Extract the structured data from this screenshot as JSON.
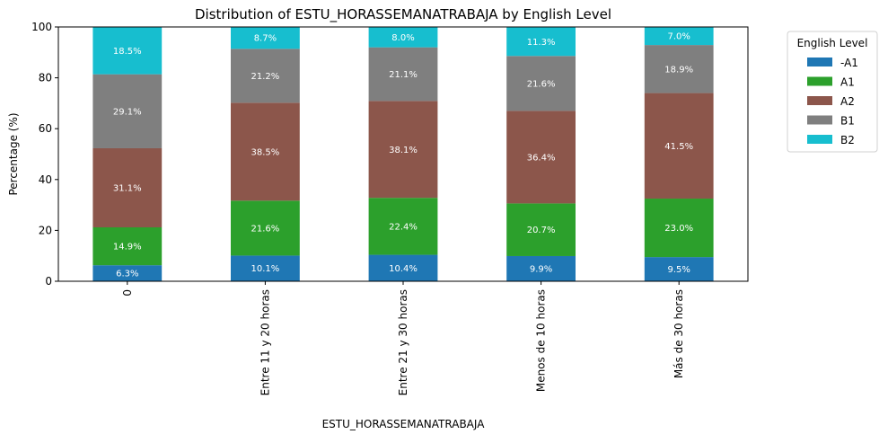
{
  "chart_data": {
    "type": "bar",
    "stacked": true,
    "title": "Distribution of ESTU_HORASSEMANATRABAJA by English Level",
    "xlabel": "ESTU_HORASSEMANATRABAJA",
    "ylabel": "Percentage (%)",
    "ylim": [
      0,
      100
    ],
    "yticks": [
      0,
      20,
      40,
      60,
      80,
      100
    ],
    "categories": [
      "0",
      "Entre 11 y 20 horas",
      "Entre 21 y 30 horas",
      "Menos de 10 horas",
      "Más de 30 horas"
    ],
    "legend_title": "English Level",
    "legend_position": "outside-top-right",
    "grid": false,
    "series": [
      {
        "name": "-A1",
        "color": "#1f77b4",
        "values": [
          6.3,
          10.1,
          10.4,
          9.9,
          9.5
        ],
        "labels": [
          "6.3%",
          "10.1%",
          "10.4%",
          "9.9%",
          "9.5%"
        ]
      },
      {
        "name": "A1",
        "color": "#2ca02c",
        "values": [
          14.9,
          21.6,
          22.4,
          20.7,
          23.0
        ],
        "labels": [
          "14.9%",
          "21.6%",
          "22.4%",
          "20.7%",
          "23.0%"
        ]
      },
      {
        "name": "A2",
        "color": "#8c564b",
        "values": [
          31.1,
          38.5,
          38.1,
          36.4,
          41.5
        ],
        "labels": [
          "31.1%",
          "38.5%",
          "38.1%",
          "36.4%",
          "41.5%"
        ]
      },
      {
        "name": "B1",
        "color": "#7f7f7f",
        "values": [
          29.1,
          21.2,
          21.1,
          21.6,
          18.9
        ],
        "labels": [
          "29.1%",
          "21.2%",
          "21.1%",
          "21.6%",
          "18.9%"
        ]
      },
      {
        "name": "B2",
        "color": "#17becf",
        "values": [
          18.5,
          8.7,
          8.0,
          11.3,
          7.0
        ],
        "labels": [
          "18.5%",
          "8.7%",
          "8.0%",
          "11.3%",
          "7.0%"
        ]
      }
    ]
  }
}
